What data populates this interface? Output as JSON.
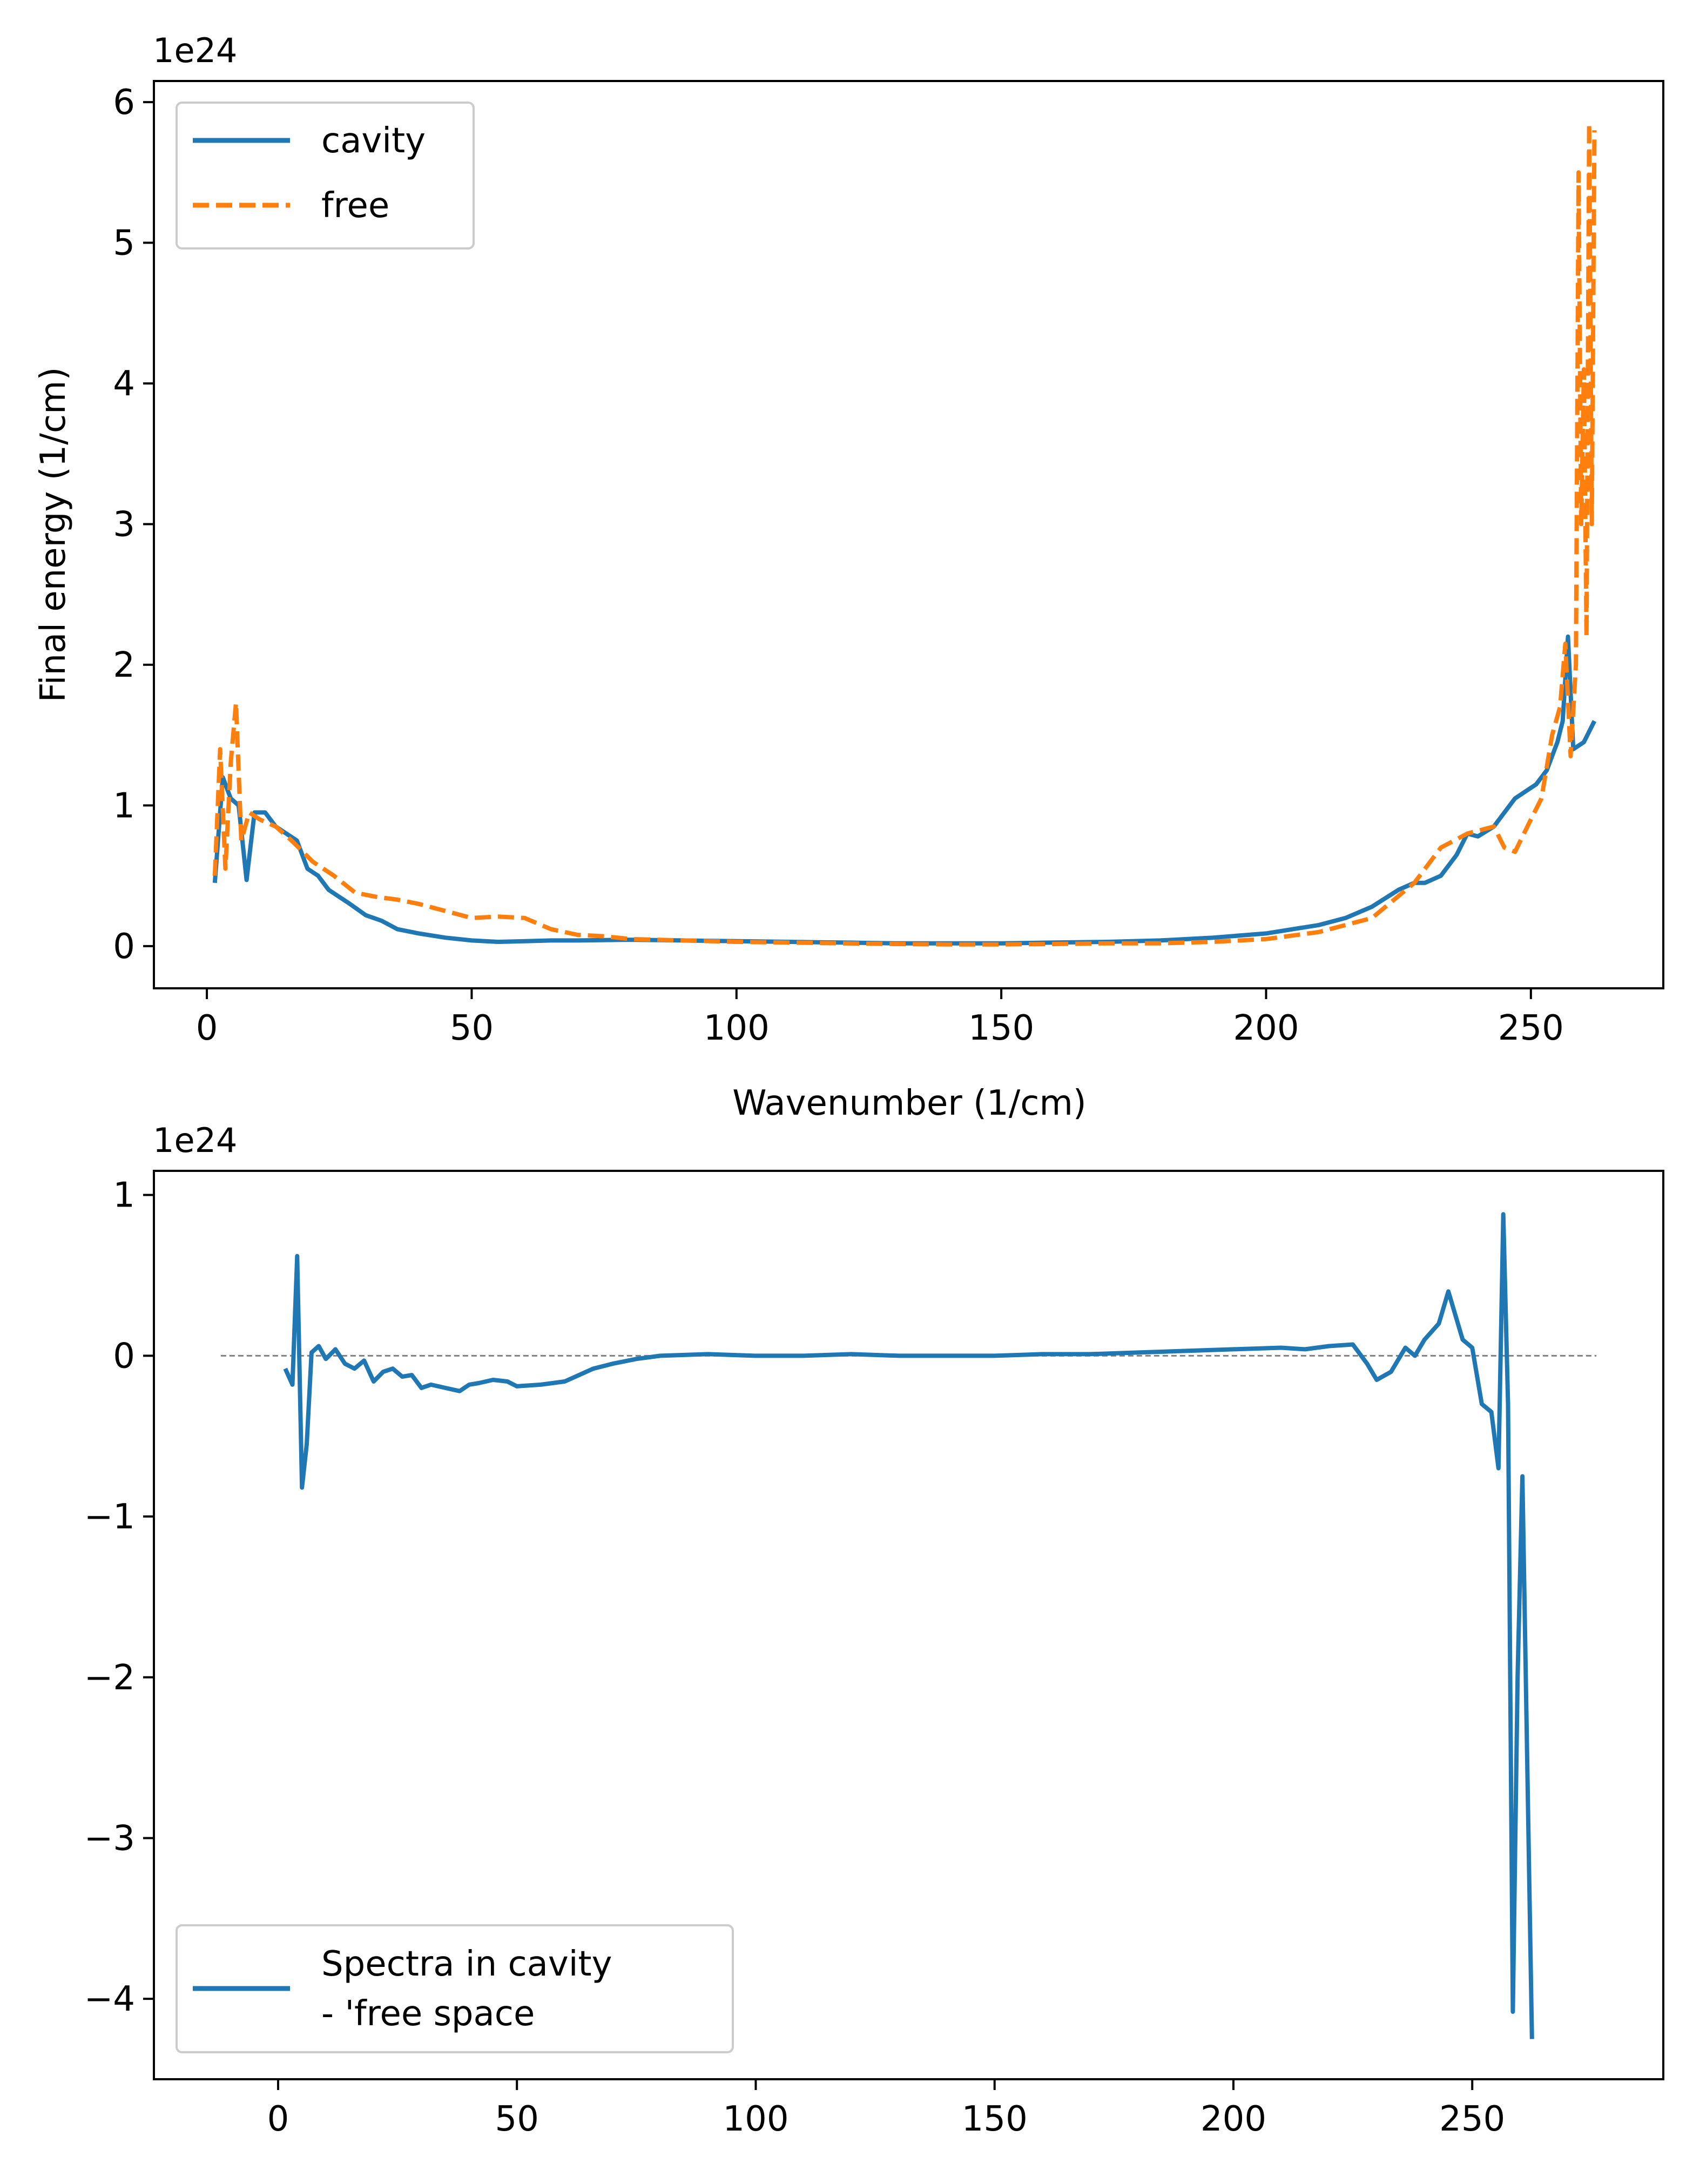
{
  "chart_data": [
    {
      "type": "line",
      "offset_label": "1e24",
      "xlabel": "Wavenumber (1/cm)",
      "ylabel": "Final energy (1/cm)",
      "xlim": [
        -10,
        275
      ],
      "ylim": [
        -0.3,
        6.15
      ],
      "xticks": [
        0,
        50,
        100,
        150,
        200,
        250
      ],
      "xtick_labels": [
        "0",
        "50",
        "100",
        "150",
        "200",
        "250"
      ],
      "yticks": [
        0,
        1,
        2,
        3,
        4,
        5,
        6
      ],
      "ytick_labels": [
        "0",
        "1",
        "2",
        "3",
        "4",
        "5",
        "6"
      ],
      "grid": false,
      "legend_position": "upper left",
      "series": [
        {
          "name": "cavity",
          "color": "#1f77b4",
          "style": "solid",
          "x": [
            1.5,
            3,
            4.5,
            6,
            7.5,
            9,
            11,
            13,
            15,
            17,
            19,
            21,
            23,
            25,
            27,
            30,
            33,
            36,
            40,
            45,
            50,
            55,
            60,
            65,
            70,
            80,
            90,
            100,
            110,
            120,
            130,
            140,
            150,
            160,
            170,
            180,
            190,
            200,
            205,
            210,
            215,
            220,
            225,
            228,
            230,
            233,
            236,
            238,
            240,
            243,
            245,
            247,
            249,
            251,
            253,
            255,
            256,
            257,
            258,
            260,
            262
          ],
          "y": [
            0.45,
            1.2,
            1.05,
            1.0,
            0.47,
            0.95,
            0.95,
            0.85,
            0.8,
            0.75,
            0.55,
            0.5,
            0.4,
            0.35,
            0.3,
            0.22,
            0.18,
            0.12,
            0.09,
            0.06,
            0.04,
            0.03,
            0.035,
            0.04,
            0.04,
            0.045,
            0.04,
            0.035,
            0.03,
            0.025,
            0.02,
            0.02,
            0.02,
            0.025,
            0.03,
            0.04,
            0.06,
            0.09,
            0.12,
            0.15,
            0.2,
            0.28,
            0.4,
            0.45,
            0.45,
            0.5,
            0.65,
            0.8,
            0.78,
            0.85,
            0.95,
            1.05,
            1.1,
            1.15,
            1.25,
            1.45,
            1.6,
            2.2,
            1.4,
            1.45,
            1.6
          ]
        },
        {
          "name": "free",
          "color": "#ff7f0e",
          "style": "dashed",
          "x": [
            1.5,
            2.5,
            3.5,
            4.5,
            5.5,
            6.5,
            8,
            10,
            13,
            16,
            20,
            24,
            28,
            32,
            36,
            40,
            45,
            50,
            55,
            60,
            65,
            70,
            75,
            80,
            90,
            100,
            110,
            120,
            130,
            140,
            150,
            160,
            170,
            180,
            190,
            200,
            210,
            220,
            228,
            233,
            238,
            243,
            245,
            247,
            250,
            252,
            254,
            255.5,
            256.5,
            257.5,
            258.5,
            259,
            259.5,
            260,
            260.5,
            261,
            261.5,
            262
          ],
          "y": [
            0.5,
            1.4,
            0.55,
            1.3,
            1.73,
            0.75,
            0.95,
            0.9,
            0.85,
            0.75,
            0.6,
            0.5,
            0.38,
            0.35,
            0.33,
            0.3,
            0.25,
            0.2,
            0.21,
            0.2,
            0.12,
            0.08,
            0.07,
            0.05,
            0.04,
            0.03,
            0.025,
            0.02,
            0.015,
            0.012,
            0.012,
            0.015,
            0.02,
            0.02,
            0.03,
            0.05,
            0.1,
            0.2,
            0.45,
            0.7,
            0.8,
            0.85,
            0.7,
            0.67,
            0.9,
            1.05,
            1.5,
            1.7,
            2.15,
            1.35,
            2.0,
            5.5,
            3.0,
            4.1,
            2.2,
            5.85,
            3.0,
            5.8
          ]
        }
      ]
    },
    {
      "type": "line",
      "offset_label": "1e24",
      "xlabel": "",
      "ylabel": "",
      "xlim": [
        -26,
        290
      ],
      "ylim": [
        -4.5,
        1.15
      ],
      "xticks": [
        0,
        50,
        100,
        150,
        200,
        250
      ],
      "xtick_labels": [
        "0",
        "50",
        "100",
        "150",
        "200",
        "250"
      ],
      "yticks": [
        1,
        0,
        -1,
        -2,
        -3,
        -4
      ],
      "ytick_labels": [
        "1",
        "0",
        "−1",
        "−2",
        "−3",
        "−4"
      ],
      "grid": false,
      "legend_position": "lower left",
      "reference_line": {
        "y": 0,
        "x": [
          -12,
          276
        ],
        "color": "#808080",
        "style": "dashed"
      },
      "series": [
        {
          "name": "Spectra in cavity\n- 'free space",
          "legend_lines": [
            "Spectra in cavity",
            "- 'free space"
          ],
          "color": "#1f77b4",
          "style": "solid",
          "x": [
            1.5,
            3,
            4,
            5,
            6,
            7,
            8.5,
            10,
            12,
            14,
            16,
            18,
            20,
            22,
            24,
            26,
            28,
            30,
            32,
            35,
            38,
            40,
            42,
            45,
            48,
            50,
            55,
            60,
            63,
            66,
            70,
            75,
            80,
            90,
            100,
            110,
            120,
            130,
            140,
            150,
            160,
            170,
            180,
            190,
            200,
            210,
            215,
            220,
            225,
            228,
            230,
            233,
            236,
            238,
            240,
            243,
            245,
            248,
            250,
            252,
            254,
            255.5,
            256.5,
            257.5,
            258.5,
            259.5,
            260.5,
            261.5,
            262.5
          ],
          "y": [
            -0.08,
            -0.18,
            0.62,
            -0.82,
            -0.55,
            0.02,
            0.06,
            -0.02,
            0.04,
            -0.05,
            -0.08,
            -0.03,
            -0.16,
            -0.1,
            -0.08,
            -0.13,
            -0.12,
            -0.2,
            -0.18,
            -0.2,
            -0.22,
            -0.18,
            -0.17,
            -0.15,
            -0.16,
            -0.19,
            -0.18,
            -0.16,
            -0.12,
            -0.08,
            -0.05,
            -0.02,
            0.0,
            0.01,
            0.0,
            0.0,
            0.01,
            0.0,
            0.0,
            0.0,
            0.01,
            0.01,
            0.02,
            0.03,
            0.04,
            0.05,
            0.04,
            0.06,
            0.07,
            -0.05,
            -0.15,
            -0.1,
            0.05,
            0.0,
            0.1,
            0.2,
            0.4,
            0.1,
            0.05,
            -0.3,
            -0.35,
            -0.7,
            0.88,
            -0.3,
            -4.08,
            -2.0,
            -0.75,
            -2.5,
            -4.25
          ]
        }
      ]
    }
  ]
}
